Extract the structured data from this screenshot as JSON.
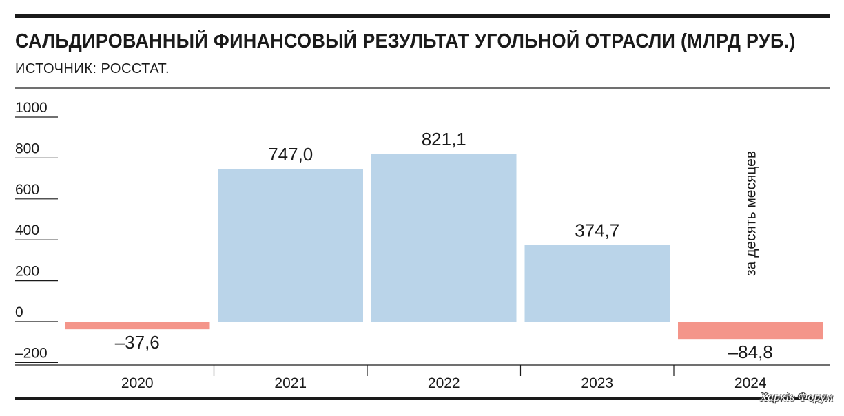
{
  "header": {
    "title": "САЛЬДИРОВАННЫЙ ФИНАНСОВЫЙ РЕЗУЛЬТАТ УГОЛЬНОЙ ОТРАСЛИ (МЛРД РУБ.)",
    "source": "ИСТОЧНИК: РОССТАТ."
  },
  "watermark": "Харків Форум",
  "chart_data": {
    "type": "bar",
    "title": "САЛЬДИРОВАННЫЙ ФИНАНСОВЫЙ РЕЗУЛЬТАТ УГОЛЬНОЙ ОТРАСЛИ (МЛРД РУБ.)",
    "categories": [
      "2020",
      "2021",
      "2022",
      "2023",
      "2024"
    ],
    "values": [
      -37.6,
      747.0,
      821.1,
      374.7,
      -84.8
    ],
    "value_labels": [
      "–37,6",
      "747,0",
      "821,1",
      "374,7",
      "–84,8"
    ],
    "annotations": [
      {
        "category": "2024",
        "text": "за десять месяцев"
      }
    ],
    "yticks": [
      1000,
      800,
      600,
      400,
      200,
      0,
      -200
    ],
    "ytick_labels": [
      "1000",
      "800",
      "600",
      "400",
      "200",
      "0",
      "–200"
    ],
    "ylim": [
      -200,
      1000
    ],
    "grid": false,
    "colors": {
      "positive": "#bad4e9",
      "negative": "#f4958a",
      "axis": "#1a1a1a"
    }
  }
}
